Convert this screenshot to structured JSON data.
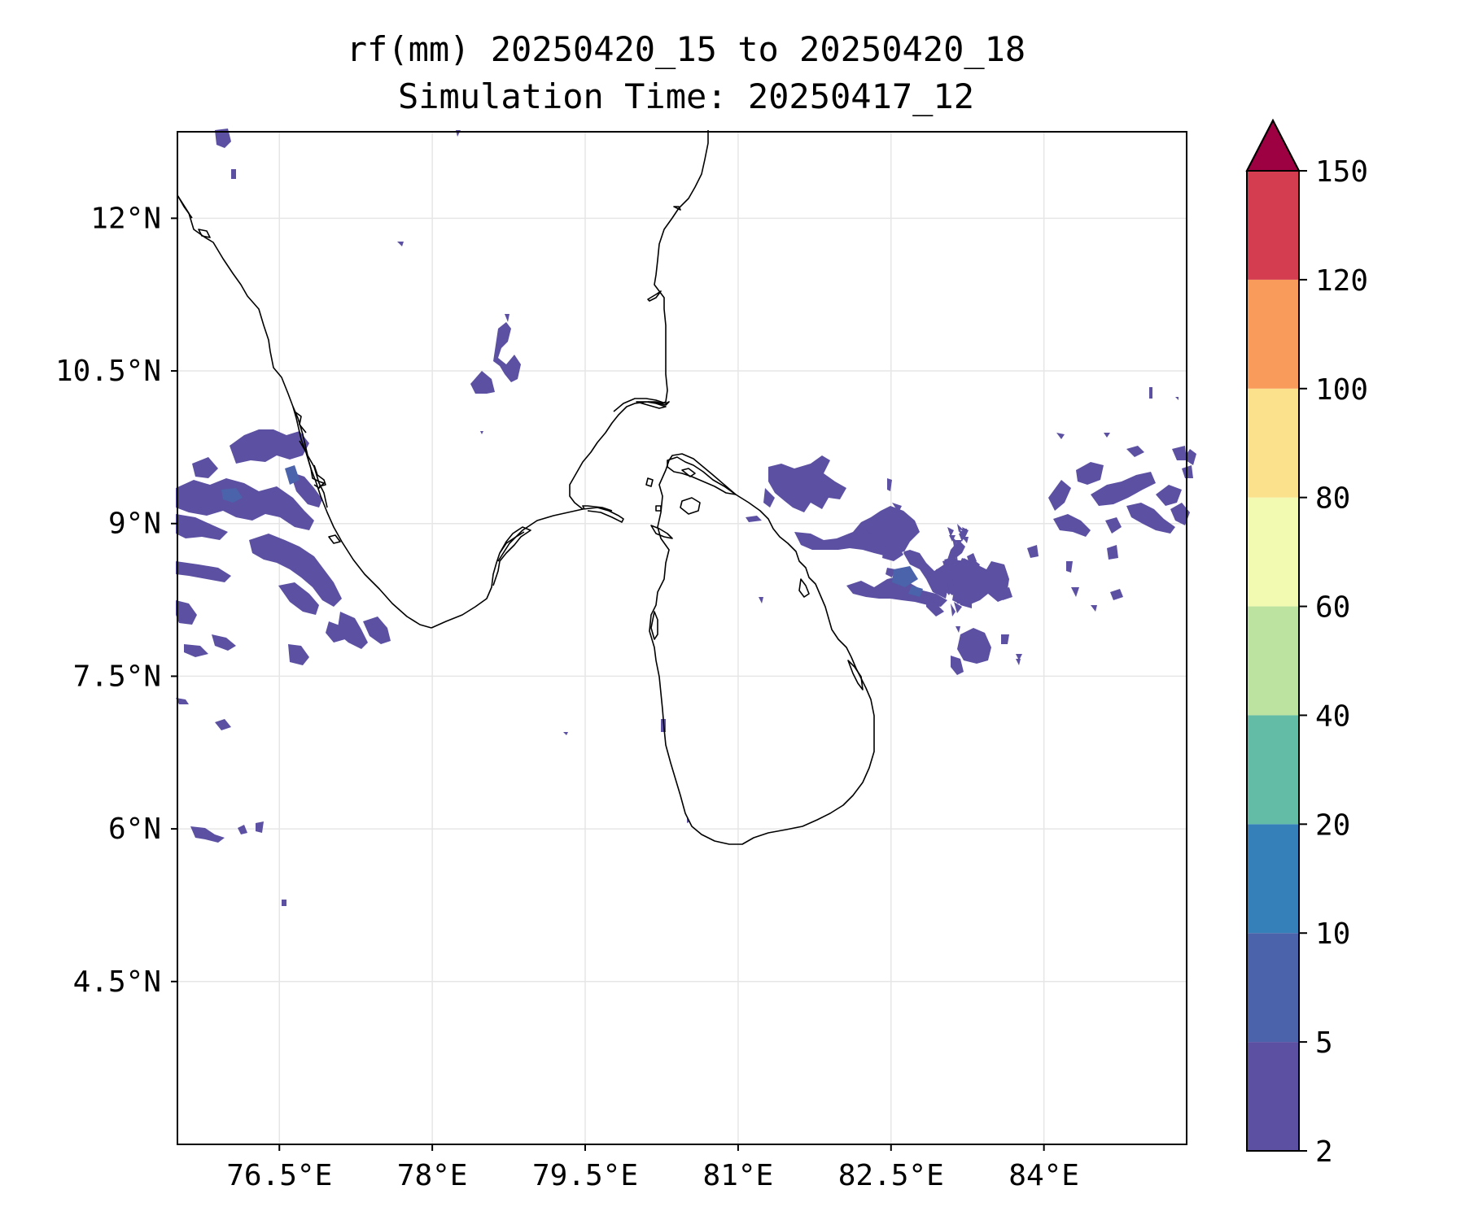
{
  "title": {
    "line1": "rf(mm) 20250420_15 to 20250420_18",
    "line2": "Simulation Time: 20250417_12"
  },
  "map": {
    "lon_range": [
      75.5,
      85.4
    ],
    "lat_range": [
      2.9,
      12.85
    ],
    "lon_ticks": [
      {
        "value": 76.5,
        "label": "76.5°E"
      },
      {
        "value": 78.0,
        "label": "78°E"
      },
      {
        "value": 79.5,
        "label": "79.5°E"
      },
      {
        "value": 81.0,
        "label": "81°E"
      },
      {
        "value": 82.5,
        "label": "82.5°E"
      },
      {
        "value": 84.0,
        "label": "84°E"
      }
    ],
    "lat_ticks": [
      {
        "value": 12.0,
        "label": "12°N"
      },
      {
        "value": 10.5,
        "label": "10.5°N"
      },
      {
        "value": 9.0,
        "label": "9°N"
      },
      {
        "value": 7.5,
        "label": "7.5°N"
      },
      {
        "value": 6.0,
        "label": "6°N"
      },
      {
        "value": 4.5,
        "label": "4.5°N"
      }
    ],
    "gridlines": true,
    "coastline_color": "#000000"
  },
  "colorbar": {
    "levels": [
      2,
      5,
      10,
      20,
      40,
      60,
      80,
      100,
      120,
      150
    ],
    "tick_labels": [
      "2",
      "5",
      "10",
      "20",
      "40",
      "60",
      "80",
      "100",
      "120",
      "150"
    ],
    "colors": [
      "#5b50a2",
      "#4a63aa",
      "#3680b9",
      "#62bca6",
      "#bce3a0",
      "#f2f9b1",
      "#fce18c",
      "#f99b5a",
      "#d43d4f"
    ],
    "extend_color": "#9e0142",
    "extend": "max"
  }
}
